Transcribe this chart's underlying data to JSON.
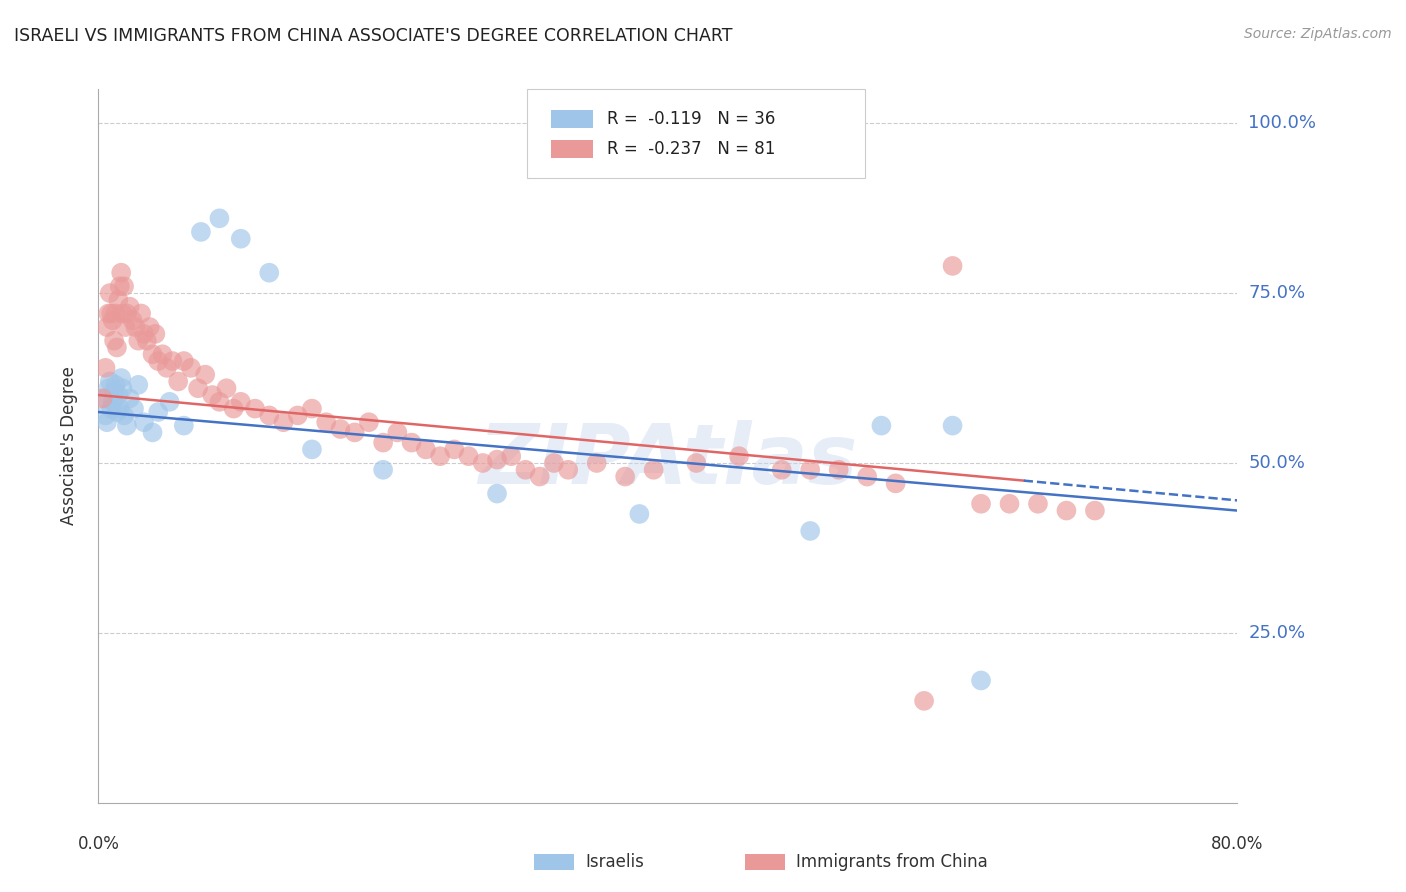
{
  "title": "ISRAELI VS IMMIGRANTS FROM CHINA ASSOCIATE'S DEGREE CORRELATION CHART",
  "source": "Source: ZipAtlas.com",
  "ylabel": "Associate's Degree",
  "xmin": 0.0,
  "xmax": 0.8,
  "ymin": 0.0,
  "ymax": 1.05,
  "ytick_vals": [
    0.25,
    0.5,
    0.75,
    1.0
  ],
  "ytick_labels": [
    "25.0%",
    "50.0%",
    "75.0%",
    "100.0%"
  ],
  "color_israeli": "#9fc5e8",
  "color_china": "#ea9999",
  "color_trendline_israeli": "#4472c4",
  "color_trendline_china": "#e06666",
  "color_ytick_labels": "#4472c4",
  "israelis_x": [
    0.004,
    0.005,
    0.006,
    0.007,
    0.008,
    0.009,
    0.01,
    0.011,
    0.012,
    0.013,
    0.014,
    0.015,
    0.016,
    0.017,
    0.018,
    0.02,
    0.022,
    0.025,
    0.028,
    0.032,
    0.038,
    0.042,
    0.05,
    0.06,
    0.072,
    0.085,
    0.1,
    0.12,
    0.15,
    0.2,
    0.28,
    0.38,
    0.5,
    0.55,
    0.6,
    0.62
  ],
  "israelis_y": [
    0.595,
    0.57,
    0.56,
    0.61,
    0.62,
    0.58,
    0.59,
    0.605,
    0.615,
    0.575,
    0.6,
    0.58,
    0.625,
    0.61,
    0.57,
    0.555,
    0.595,
    0.58,
    0.615,
    0.56,
    0.545,
    0.575,
    0.59,
    0.555,
    0.84,
    0.86,
    0.83,
    0.78,
    0.52,
    0.49,
    0.455,
    0.425,
    0.4,
    0.555,
    0.555,
    0.18
  ],
  "china_x": [
    0.003,
    0.005,
    0.006,
    0.007,
    0.008,
    0.009,
    0.01,
    0.011,
    0.012,
    0.013,
    0.014,
    0.015,
    0.016,
    0.017,
    0.018,
    0.019,
    0.02,
    0.022,
    0.024,
    0.026,
    0.028,
    0.03,
    0.032,
    0.034,
    0.036,
    0.038,
    0.04,
    0.042,
    0.045,
    0.048,
    0.052,
    0.056,
    0.06,
    0.065,
    0.07,
    0.075,
    0.08,
    0.085,
    0.09,
    0.095,
    0.1,
    0.11,
    0.12,
    0.13,
    0.14,
    0.15,
    0.16,
    0.17,
    0.18,
    0.19,
    0.2,
    0.21,
    0.22,
    0.23,
    0.24,
    0.25,
    0.26,
    0.27,
    0.28,
    0.29,
    0.3,
    0.31,
    0.32,
    0.33,
    0.35,
    0.37,
    0.39,
    0.42,
    0.45,
    0.48,
    0.5,
    0.52,
    0.54,
    0.56,
    0.58,
    0.6,
    0.62,
    0.64,
    0.66,
    0.68,
    0.7
  ],
  "china_y": [
    0.595,
    0.64,
    0.7,
    0.72,
    0.75,
    0.72,
    0.71,
    0.68,
    0.72,
    0.67,
    0.74,
    0.76,
    0.78,
    0.72,
    0.76,
    0.7,
    0.72,
    0.73,
    0.71,
    0.7,
    0.68,
    0.72,
    0.69,
    0.68,
    0.7,
    0.66,
    0.69,
    0.65,
    0.66,
    0.64,
    0.65,
    0.62,
    0.65,
    0.64,
    0.61,
    0.63,
    0.6,
    0.59,
    0.61,
    0.58,
    0.59,
    0.58,
    0.57,
    0.56,
    0.57,
    0.58,
    0.56,
    0.55,
    0.545,
    0.56,
    0.53,
    0.545,
    0.53,
    0.52,
    0.51,
    0.52,
    0.51,
    0.5,
    0.505,
    0.51,
    0.49,
    0.48,
    0.5,
    0.49,
    0.5,
    0.48,
    0.49,
    0.5,
    0.51,
    0.49,
    0.49,
    0.49,
    0.48,
    0.47,
    0.15,
    0.79,
    0.44,
    0.44,
    0.44,
    0.43,
    0.43
  ],
  "trendline_isr_x0": 0.0,
  "trendline_isr_x1": 0.8,
  "trendline_isr_y0": 0.575,
  "trendline_isr_y1": 0.43,
  "trendline_chn_x0": 0.0,
  "trendline_chn_x1": 0.8,
  "trendline_chn_y0": 0.6,
  "trendline_chn_y1": 0.445,
  "trendline_chn_solid_end": 0.65,
  "watermark": "ZIPAtlas"
}
